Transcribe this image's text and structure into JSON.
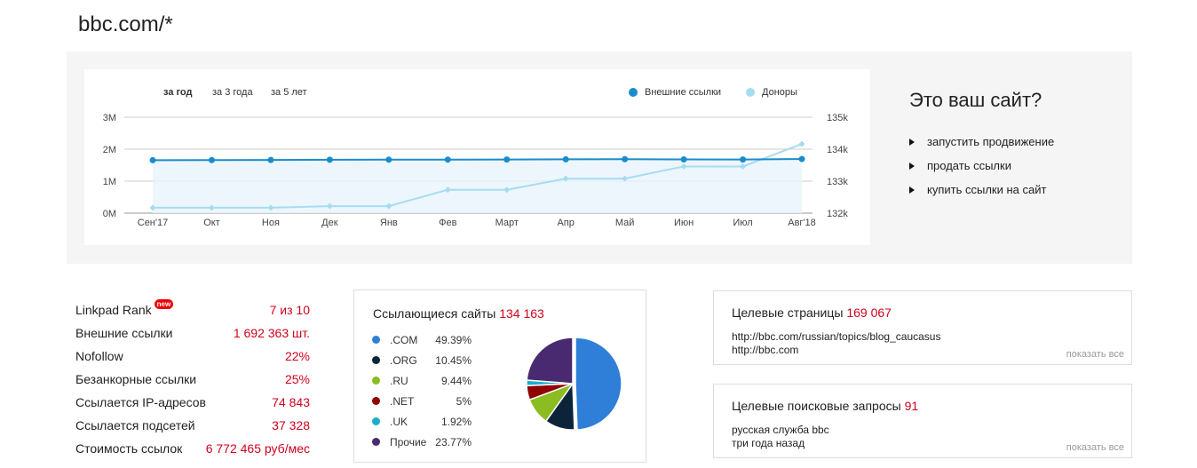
{
  "site": {
    "title": "bbc.com/*"
  },
  "chart": {
    "tabs": [
      {
        "label": "за год",
        "active": true
      },
      {
        "label": "за 3 года",
        "active": false
      },
      {
        "label": "за 5 лет",
        "active": false
      }
    ]
  },
  "chart_data": {
    "type": "line",
    "categories": [
      "Сен'17",
      "Окт",
      "Ноя",
      "Дек",
      "Янв",
      "Фев",
      "Март",
      "Апр",
      "Май",
      "Июн",
      "Июл",
      "Авг'18"
    ],
    "left_axis": {
      "ticks": [
        "0M",
        "1M",
        "2M",
        "3M"
      ],
      "min": 0,
      "max": 3000000
    },
    "right_axis": {
      "ticks": [
        "132k",
        "133k",
        "134k",
        "135k"
      ],
      "min": 132000,
      "max": 135000
    },
    "series": [
      {
        "name": "Внешние ссылки",
        "color": "#1a8ccc",
        "axis": "left",
        "values": [
          1655000,
          1660000,
          1663000,
          1670000,
          1672000,
          1675000,
          1678000,
          1685000,
          1688000,
          1680000,
          1678000,
          1692363
        ]
      },
      {
        "name": "Доноры",
        "color": "#a6dcf2",
        "axis": "right",
        "values": [
          132170,
          132170,
          132170,
          132220,
          132220,
          132730,
          132730,
          133080,
          133080,
          133460,
          133460,
          134163
        ]
      }
    ],
    "grid": true,
    "legend_position": "top-right"
  },
  "promo": {
    "title": "Это ваш сайт?",
    "items": [
      "запустить продвижение",
      "продать ссылки",
      "купить ссылки на сайт"
    ]
  },
  "stats": {
    "badge": "new",
    "rows": [
      {
        "label": "Linkpad Rank",
        "value": "7 из 10"
      },
      {
        "label": "Внешние ссылки",
        "value": "1 692 363 шт."
      },
      {
        "label": "Nofollow",
        "value": "22%"
      },
      {
        "label": "Безанкорные ссылки",
        "value": "25%"
      },
      {
        "label": "Ссылается IP-адресов",
        "value": "74 843"
      },
      {
        "label": "Ссылается подсетей",
        "value": "37 328"
      },
      {
        "label": "Стоимость ссылок",
        "value": "6 772 465 руб/мес"
      }
    ]
  },
  "referring": {
    "title": "Ссылающиеся сайты",
    "count": "134 163",
    "items": [
      {
        "name": ".COM",
        "pct": "49.39%",
        "value": 49.39,
        "color": "#2f7ed8"
      },
      {
        "name": ".ORG",
        "pct": "10.45%",
        "value": 10.45,
        "color": "#0d233a"
      },
      {
        "name": ".RU",
        "pct": "9.44%",
        "value": 9.44,
        "color": "#8bbc21"
      },
      {
        "name": ".NET",
        "pct": "5%",
        "value": 5,
        "color": "#910000"
      },
      {
        "name": ".UK",
        "pct": "1.92%",
        "value": 1.92,
        "color": "#1aadce"
      },
      {
        "name": "Прочие",
        "pct": "23.77%",
        "value": 23.77,
        "color": "#492970"
      }
    ]
  },
  "target_pages": {
    "title": "Целевые страницы",
    "count": "169 067",
    "lines": [
      "http://bbc.com/russian/topics/blog_caucasus",
      "http://bbc.com"
    ],
    "show_all": "показать все"
  },
  "queries": {
    "title": "Целевые поисковые запросы",
    "count": "91",
    "lines": [
      "русская служба bbc",
      "три года назад"
    ],
    "show_all": "показать все"
  }
}
